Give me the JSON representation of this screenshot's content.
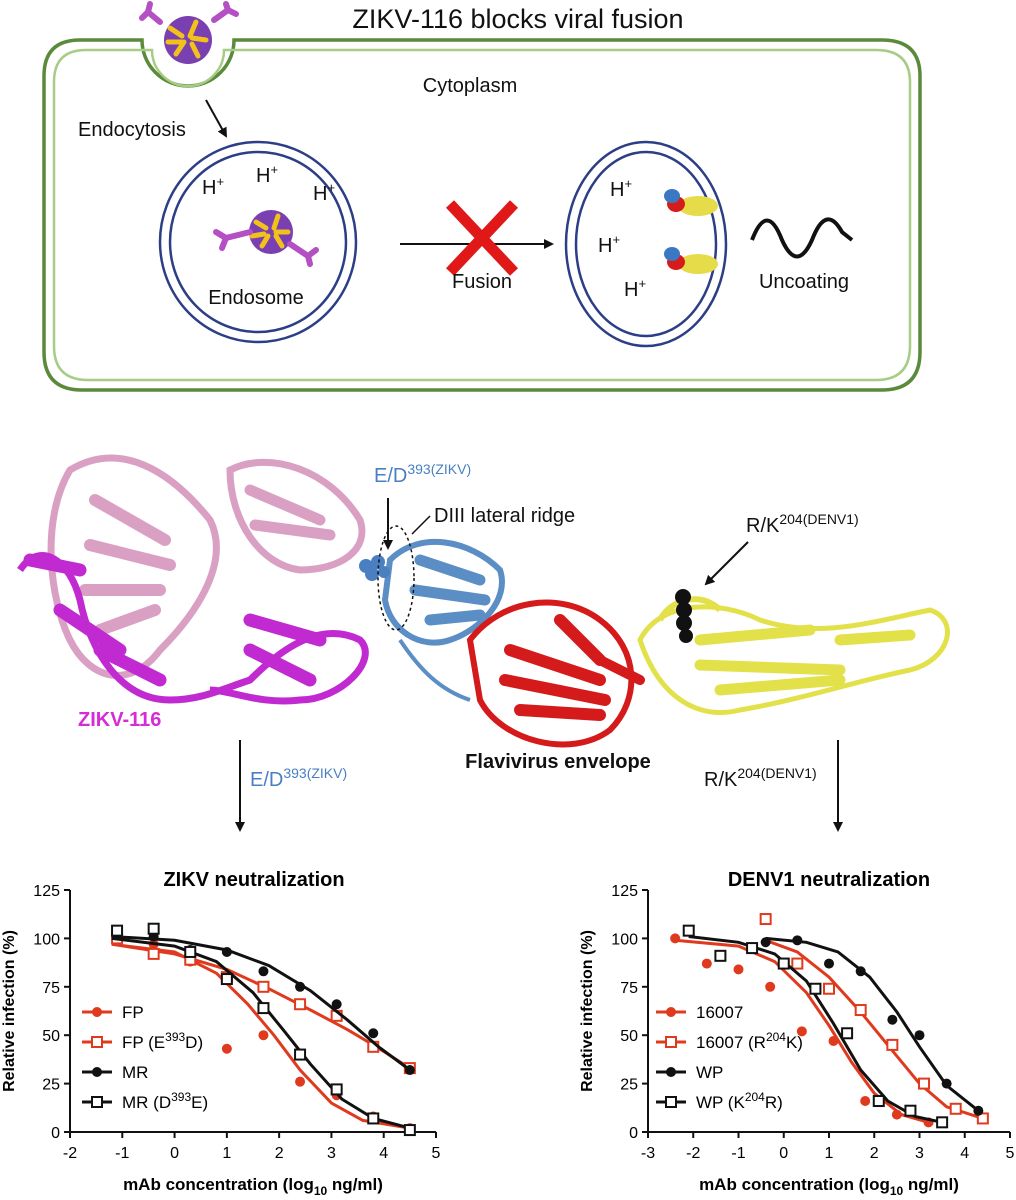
{
  "top_panel": {
    "title": "ZIKV-116 blocks viral fusion",
    "cytoplasm": "Cytoplasm",
    "endocytosis": "Endocytosis",
    "endosome": "Endosome",
    "fusion": "Fusion",
    "uncoating": "Uncoating",
    "h_plus": "H+",
    "h": "H",
    "plus": "+"
  },
  "structure_panel": {
    "antibody_label": "ZIKV-116",
    "envelope_label": "Flavivirus envelope",
    "residue_zikv_base": "E/D",
    "residue_zikv_sup": "393(ZIKV)",
    "ridge_label": "DIII lateral ridge",
    "residue_denv_base": "R/K",
    "residue_denv_sup": "204(DENV1)",
    "colors": {
      "antibody_heavy": "#c02ad0",
      "antibody_light": "#d9a0c4",
      "diii": "#5b8ec4",
      "di": "#d41a1a",
      "dii": "#e3e14a",
      "zikv_label": "#d62bd6",
      "residue_zikv_label": "#4a7fc1"
    }
  },
  "chart_data": [
    {
      "type": "scatter",
      "title": "ZIKV neutralization",
      "xlabel_main": "mAb concentration (log",
      "xlabel_sub": "10",
      "xlabel_end": " ng/ml)",
      "ylabel": "Relative infection (%)",
      "xlim": [
        -2,
        5
      ],
      "ylim": [
        0,
        125
      ],
      "xticks": [
        "-2",
        "-1",
        "0",
        "1",
        "2",
        "3",
        "4",
        "5"
      ],
      "yticks": [
        "0",
        "25",
        "50",
        "75",
        "100",
        "125"
      ],
      "series": [
        {
          "name": "FP",
          "name_sup": "",
          "name_tail": "",
          "color": "#e03a1e",
          "marker": "filled-circle",
          "x": [
            -1.1,
            -0.4,
            0.3,
            1.0,
            1.7,
            2.4,
            3.1,
            3.8,
            4.5
          ],
          "y": [
            101,
            97,
            88,
            43,
            50,
            26,
            19,
            8,
            2
          ],
          "curve": [
            [
              -1.2,
              97
            ],
            [
              0,
              93
            ],
            [
              0.8,
              82
            ],
            [
              1.4,
              66
            ],
            [
              1.9,
              50
            ],
            [
              2.4,
              32
            ],
            [
              3.0,
              15
            ],
            [
              3.6,
              6
            ],
            [
              4.5,
              2
            ]
          ]
        },
        {
          "name": "FP (E",
          "name_sup": "393",
          "name_tail": "D)",
          "color": "#e03a1e",
          "marker": "open-square",
          "x": [
            -1.1,
            -0.4,
            0.3,
            1.0,
            1.7,
            2.4,
            3.1,
            3.8,
            4.5
          ],
          "y": [
            100,
            92,
            89,
            80,
            75,
            66,
            60,
            44,
            33
          ],
          "curve": [
            [
              -1.2,
              97
            ],
            [
              0,
              92
            ],
            [
              1.0,
              84
            ],
            [
              1.8,
              74
            ],
            [
              2.6,
              63
            ],
            [
              3.3,
              53
            ],
            [
              3.8,
              45
            ],
            [
              4.5,
              33
            ]
          ]
        },
        {
          "name": "MR",
          "name_sup": "",
          "name_tail": "",
          "color": "#111111",
          "marker": "filled-circle",
          "x": [
            -1.1,
            -0.4,
            0.3,
            1.0,
            1.7,
            2.4,
            3.1,
            3.8,
            4.5
          ],
          "y": [
            104,
            101,
            94,
            93,
            83,
            75,
            66,
            51,
            32
          ],
          "curve": [
            [
              -1.2,
              101
            ],
            [
              0,
              99
            ],
            [
              1.0,
              94
            ],
            [
              1.8,
              86
            ],
            [
              2.6,
              73
            ],
            [
              3.3,
              58
            ],
            [
              3.9,
              44
            ],
            [
              4.5,
              32
            ]
          ]
        },
        {
          "name": "MR (D",
          "name_sup": "393",
          "name_tail": "E)",
          "color": "#111111",
          "marker": "open-square",
          "x": [
            -1.1,
            -0.4,
            0.3,
            1.0,
            1.7,
            2.4,
            3.1,
            3.8,
            4.5
          ],
          "y": [
            104,
            105,
            93,
            79,
            64,
            40,
            22,
            7,
            1
          ],
          "curve": [
            [
              -1.2,
              100
            ],
            [
              0,
              96
            ],
            [
              0.8,
              88
            ],
            [
              1.5,
              72
            ],
            [
              2.1,
              52
            ],
            [
              2.6,
              35
            ],
            [
              3.2,
              17
            ],
            [
              3.8,
              7
            ],
            [
              4.5,
              2
            ]
          ]
        }
      ]
    },
    {
      "type": "scatter",
      "title": "DENV1 neutralization",
      "xlabel_main": "mAb concentration (log",
      "xlabel_sub": "10",
      "xlabel_end": " ng/ml)",
      "ylabel": "Relative infection (%)",
      "xlim": [
        -3,
        5
      ],
      "ylim": [
        0,
        125
      ],
      "xticks": [
        "-3",
        "-2",
        "-1",
        "0",
        "1",
        "2",
        "3",
        "4",
        "5"
      ],
      "yticks": [
        "0",
        "25",
        "50",
        "75",
        "100",
        "125"
      ],
      "series": [
        {
          "name": "16007",
          "name_sup": "",
          "name_tail": "",
          "color": "#e03a1e",
          "marker": "filled-circle",
          "x": [
            -2.4,
            -1.7,
            -1.0,
            -0.3,
            0.4,
            1.1,
            1.8,
            2.5,
            3.2
          ],
          "y": [
            100,
            87,
            84,
            75,
            52,
            47,
            16,
            9,
            5
          ],
          "curve": [
            [
              -2.4,
              99
            ],
            [
              -1.0,
              96
            ],
            [
              -0.2,
              88
            ],
            [
              0.5,
              72
            ],
            [
              1.0,
              55
            ],
            [
              1.5,
              36
            ],
            [
              2.0,
              20
            ],
            [
              2.6,
              9
            ],
            [
              3.2,
              5
            ]
          ]
        },
        {
          "name": "16007 (R",
          "name_sup": "204",
          "name_tail": "K)",
          "color": "#e03a1e",
          "marker": "open-square",
          "x": [
            -0.4,
            0.3,
            1.0,
            1.7,
            2.4,
            3.1,
            3.8,
            4.4
          ],
          "y": [
            110,
            87,
            74,
            63,
            45,
            25,
            12,
            7
          ],
          "curve": [
            [
              -0.4,
              99
            ],
            [
              0.3,
              93
            ],
            [
              1.0,
              80
            ],
            [
              1.7,
              62
            ],
            [
              2.4,
              42
            ],
            [
              3.0,
              25
            ],
            [
              3.6,
              13
            ],
            [
              4.4,
              7
            ]
          ]
        },
        {
          "name": "WP",
          "name_sup": "",
          "name_tail": "",
          "color": "#111111",
          "marker": "filled-circle",
          "x": [
            -0.4,
            0.3,
            1.0,
            1.7,
            2.4,
            3.0,
            3.6,
            4.3
          ],
          "y": [
            98,
            99,
            87,
            83,
            58,
            50,
            25,
            11
          ],
          "curve": [
            [
              -0.4,
              100
            ],
            [
              0.5,
              98
            ],
            [
              1.2,
              93
            ],
            [
              1.9,
              80
            ],
            [
              2.5,
              62
            ],
            [
              3.0,
              44
            ],
            [
              3.6,
              24
            ],
            [
              4.3,
              11
            ]
          ]
        },
        {
          "name": "WP (K",
          "name_sup": "204",
          "name_tail": "R)",
          "color": "#111111",
          "marker": "open-square",
          "x": [
            -2.1,
            -1.4,
            -0.7,
            0.0,
            0.7,
            1.4,
            2.1,
            2.8,
            3.5
          ],
          "y": [
            104,
            91,
            95,
            87,
            74,
            51,
            16,
            11,
            5
          ],
          "curve": [
            [
              -2.1,
              101
            ],
            [
              -1.0,
              98
            ],
            [
              -0.2,
              92
            ],
            [
              0.5,
              78
            ],
            [
              1.1,
              56
            ],
            [
              1.7,
              32
            ],
            [
              2.3,
              16
            ],
            [
              2.9,
              8
            ],
            [
              3.5,
              5
            ]
          ]
        }
      ]
    }
  ]
}
